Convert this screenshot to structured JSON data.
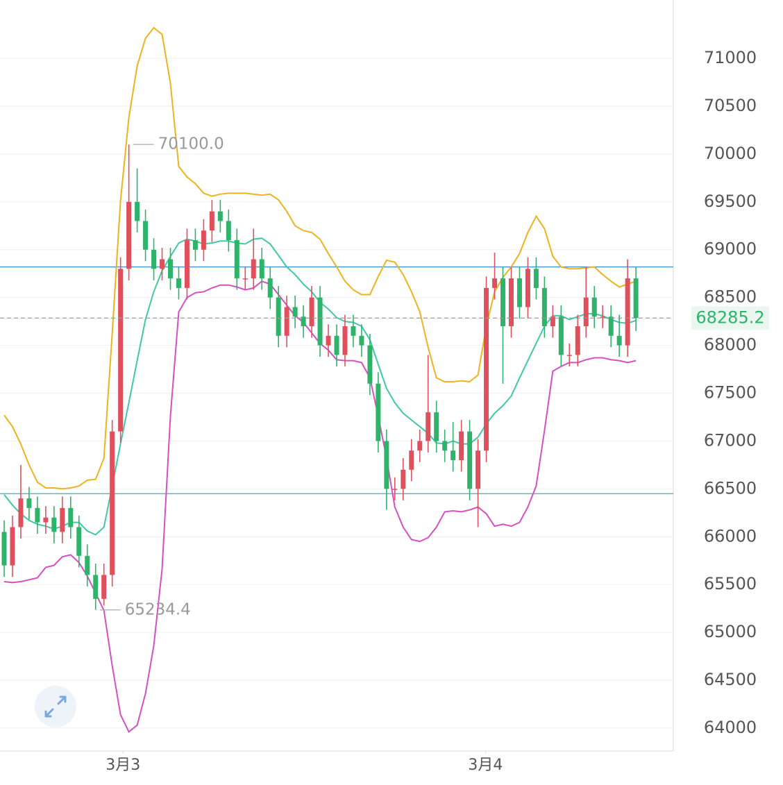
{
  "chart_data": {
    "type": "candlestick",
    "ylim": [
      63760,
      71610
    ],
    "yticks": [
      64000,
      64500,
      65000,
      65500,
      66000,
      66500,
      67000,
      67500,
      68000,
      68500,
      69000,
      69500,
      70000,
      70500,
      71000
    ],
    "xlim": [
      -0.5,
      80.5
    ],
    "xticks": [
      {
        "value": 14.3,
        "label": "3月3"
      },
      {
        "value": 57.9,
        "label": "3月4"
      }
    ],
    "grid": true,
    "up_color": "#e0505c",
    "down_color": "#2fb36b",
    "open": [
      66050,
      65700,
      66100,
      66400,
      66300,
      66150,
      66200,
      66050,
      66300,
      66100,
      65800,
      65600,
      65350,
      65600,
      67100,
      68800,
      69500,
      69300,
      69000,
      68800,
      68900,
      68700,
      68600,
      69100,
      69000,
      69200,
      69400,
      69300,
      69100,
      68700,
      68700,
      68900,
      68700,
      68500,
      68100,
      68400,
      68300,
      68200,
      68500,
      68000,
      68100,
      67900,
      68200,
      68100,
      68000,
      67600,
      67000,
      66500,
      66500,
      66700,
      66900,
      67000,
      67300,
      67000,
      66900,
      66800,
      67100,
      66500,
      66900,
      68600,
      68700,
      68200,
      68700,
      68400,
      68800,
      68600,
      68200,
      68300,
      67900,
      67900,
      68200,
      68500,
      68300,
      68300,
      68100,
      68000,
      68700
    ],
    "high": [
      66170,
      66220,
      66750,
      66520,
      66420,
      66320,
      66320,
      66420,
      66420,
      66220,
      65920,
      65720,
      65720,
      67220,
      68920,
      70100.0,
      69850,
      69420,
      69120,
      69020,
      69020,
      68820,
      69220,
      69220,
      69320,
      69520,
      69520,
      69420,
      69220,
      68820,
      69220,
      69020,
      68820,
      68620,
      68520,
      68520,
      68420,
      68620,
      68620,
      68220,
      68220,
      68320,
      68320,
      68220,
      68120,
      67720,
      67120,
      66620,
      66820,
      67020,
      67120,
      67900,
      67420,
      67120,
      67200,
      67220,
      67220,
      67020,
      68720,
      68970,
      68820,
      68820,
      68820,
      68920,
      68920,
      68720,
      68420,
      68420,
      68020,
      68320,
      68820,
      68620,
      68420,
      68420,
      68320,
      68900,
      68820
    ],
    "low": [
      65580,
      65580,
      65980,
      66180,
      66030,
      66030,
      65930,
      65930,
      65980,
      65680,
      65480,
      65234.4,
      65280,
      65480,
      66980,
      68680,
      69180,
      68880,
      68680,
      68680,
      68580,
      68480,
      68480,
      68880,
      68880,
      69080,
      69180,
      68980,
      68580,
      68580,
      68580,
      68580,
      68380,
      67980,
      67980,
      68180,
      68080,
      68080,
      67880,
      67880,
      67780,
      67780,
      67980,
      67880,
      67480,
      66880,
      66280,
      66380,
      66380,
      66580,
      66780,
      66880,
      66880,
      66780,
      66680,
      66680,
      66380,
      66100,
      66780,
      68480,
      67600,
      68080,
      68280,
      68280,
      68480,
      68080,
      68080,
      67780,
      67780,
      67780,
      68080,
      68180,
      68180,
      67980,
      67880,
      67880,
      68150
    ],
    "close": [
      65700,
      66100,
      66400,
      66300,
      66150,
      66200,
      66050,
      66300,
      66100,
      65800,
      65600,
      65350,
      65600,
      67100,
      68800,
      69500,
      69300,
      69000,
      68800,
      68900,
      68700,
      68600,
      69100,
      69000,
      69200,
      69400,
      69300,
      69100,
      68700,
      68700,
      68900,
      68700,
      68500,
      68100,
      68400,
      68300,
      68200,
      68500,
      68000,
      68100,
      67900,
      68200,
      68100,
      68000,
      67600,
      67000,
      66500,
      66500,
      66700,
      66900,
      67000,
      67300,
      67000,
      66900,
      66800,
      67100,
      66500,
      66900,
      68600,
      68700,
      68200,
      68700,
      68400,
      68800,
      68600,
      68200,
      68300,
      67900,
      67900,
      68200,
      68500,
      68300,
      68300,
      68100,
      68000,
      68700,
      68285.2
    ],
    "series": [
      {
        "color": "#eeb31c",
        "values": [
          67270,
          67150,
          66970,
          66750,
          66570,
          66510,
          66510,
          66500,
          66510,
          66530,
          66590,
          66600,
          66820,
          68130,
          69510,
          70380,
          70920,
          71210,
          71320,
          71250,
          70740,
          69870,
          69760,
          69690,
          69590,
          69560,
          69580,
          69590,
          69590,
          69590,
          69580,
          69570,
          69580,
          69520,
          69400,
          69250,
          69200,
          69180,
          69110,
          68960,
          68820,
          68670,
          68580,
          68530,
          68530,
          68720,
          68890,
          68870,
          68740,
          68560,
          68350,
          67980,
          67660,
          67620,
          67620,
          67630,
          67620,
          67690,
          68200,
          68560,
          68710,
          68820,
          68960,
          69180,
          69350,
          69220,
          68930,
          68820,
          68800,
          68800,
          68810,
          68820,
          68740,
          68670,
          68610,
          68640,
          68670
        ]
      },
      {
        "color": "#3ec8a6",
        "values": [
          66440,
          66330,
          66240,
          66170,
          66130,
          66110,
          66080,
          66110,
          66150,
          66150,
          66060,
          66020,
          66100,
          66530,
          66970,
          67400,
          67840,
          68270,
          68560,
          68780,
          68930,
          69070,
          69110,
          69090,
          69060,
          69070,
          69090,
          69090,
          69070,
          69060,
          69110,
          69120,
          69060,
          68940,
          68820,
          68740,
          68640,
          68560,
          68450,
          68380,
          68290,
          68250,
          68240,
          68200,
          68060,
          67800,
          67550,
          67400,
          67290,
          67220,
          67150,
          67080,
          66980,
          66970,
          67000,
          66970,
          66970,
          67040,
          67180,
          67290,
          67370,
          67470,
          67660,
          67840,
          68020,
          68200,
          68310,
          68310,
          68270,
          68300,
          68330,
          68330,
          68310,
          68270,
          68240,
          68230,
          68260
        ]
      },
      {
        "color": "#d64fc0",
        "values": [
          65530,
          65520,
          65530,
          65550,
          65570,
          65680,
          65700,
          65790,
          65810,
          65730,
          65590,
          65410,
          65230,
          64650,
          64140,
          63960,
          64030,
          64360,
          64860,
          65660,
          67260,
          68350,
          68500,
          68550,
          68560,
          68600,
          68630,
          68630,
          68610,
          68580,
          68600,
          68670,
          68640,
          68530,
          68420,
          68310,
          68240,
          68130,
          68020,
          67950,
          67850,
          67840,
          67840,
          67820,
          67660,
          67260,
          66820,
          66310,
          66100,
          65970,
          65950,
          65990,
          66100,
          66260,
          66270,
          66260,
          66280,
          66310,
          66240,
          66110,
          66130,
          66110,
          66150,
          66310,
          66530,
          67110,
          67730,
          67780,
          67820,
          67820,
          67850,
          67870,
          67870,
          67850,
          67840,
          67820,
          67840
        ]
      }
    ],
    "hlines": [
      {
        "value": 68820,
        "color": "#3b8fd4"
      },
      {
        "value": 66450,
        "color": "#38b3b3"
      }
    ],
    "last_price": 68285.2,
    "annotations": [
      {
        "x": 15,
        "value": 70100.0,
        "label": "70100.0"
      },
      {
        "x": 11,
        "value": 65234.4,
        "label": "65234.4"
      }
    ]
  }
}
